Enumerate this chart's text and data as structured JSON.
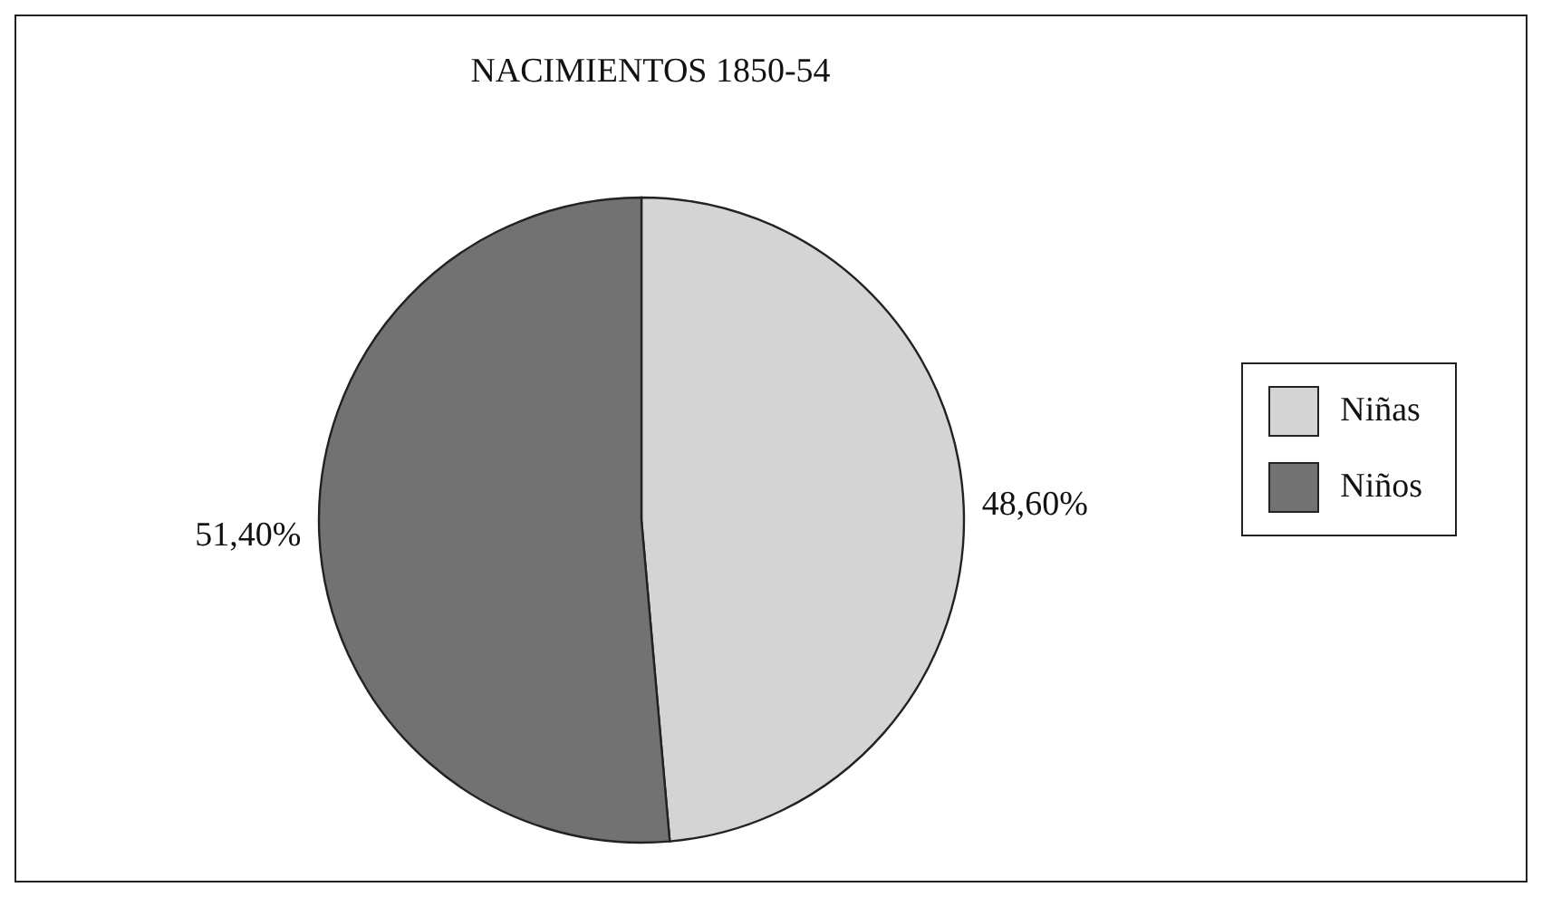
{
  "chart_data": {
    "type": "pie",
    "title": "NACIMIENTOS 1850-54",
    "categories": [
      "Niñas",
      "Niños"
    ],
    "values": [
      48.6,
      51.4
    ],
    "colors": [
      "#d4d4d4",
      "#727272"
    ],
    "value_labels": [
      "48,60%",
      "51,40%"
    ],
    "legend": "right"
  }
}
